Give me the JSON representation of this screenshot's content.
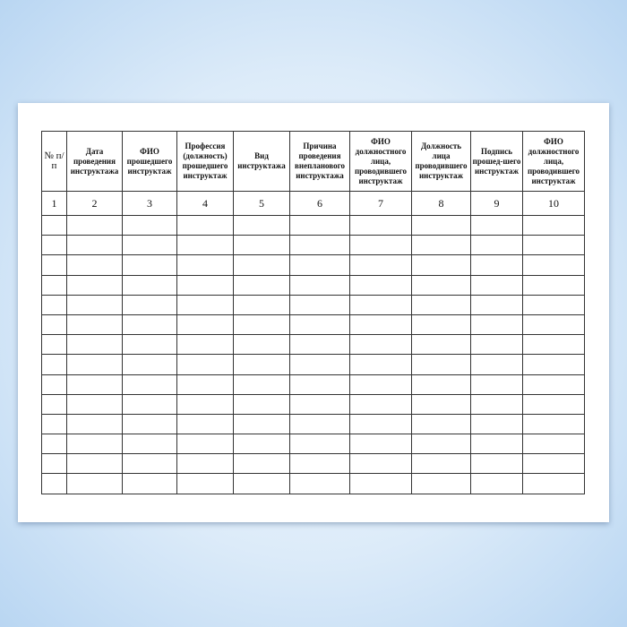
{
  "table": {
    "headers": [
      "№ п/п",
      "Дата проведения инструктажа",
      "ФИО прошедшего инструктаж",
      "Профессия (должность) прошедшего инструктаж",
      "Вид инструктажа",
      "Причина проведения внепланового инструктажа",
      "ФИО должностного лица, проводившего инструктаж",
      "Должность лица проводившего инструктаж",
      "Подпись прошед-шего инструктаж",
      "ФИО должностного лица, проводившего инструктаж"
    ],
    "column_numbers": [
      "1",
      "2",
      "3",
      "4",
      "5",
      "6",
      "7",
      "8",
      "9",
      "10"
    ],
    "empty_rows": 14
  }
}
